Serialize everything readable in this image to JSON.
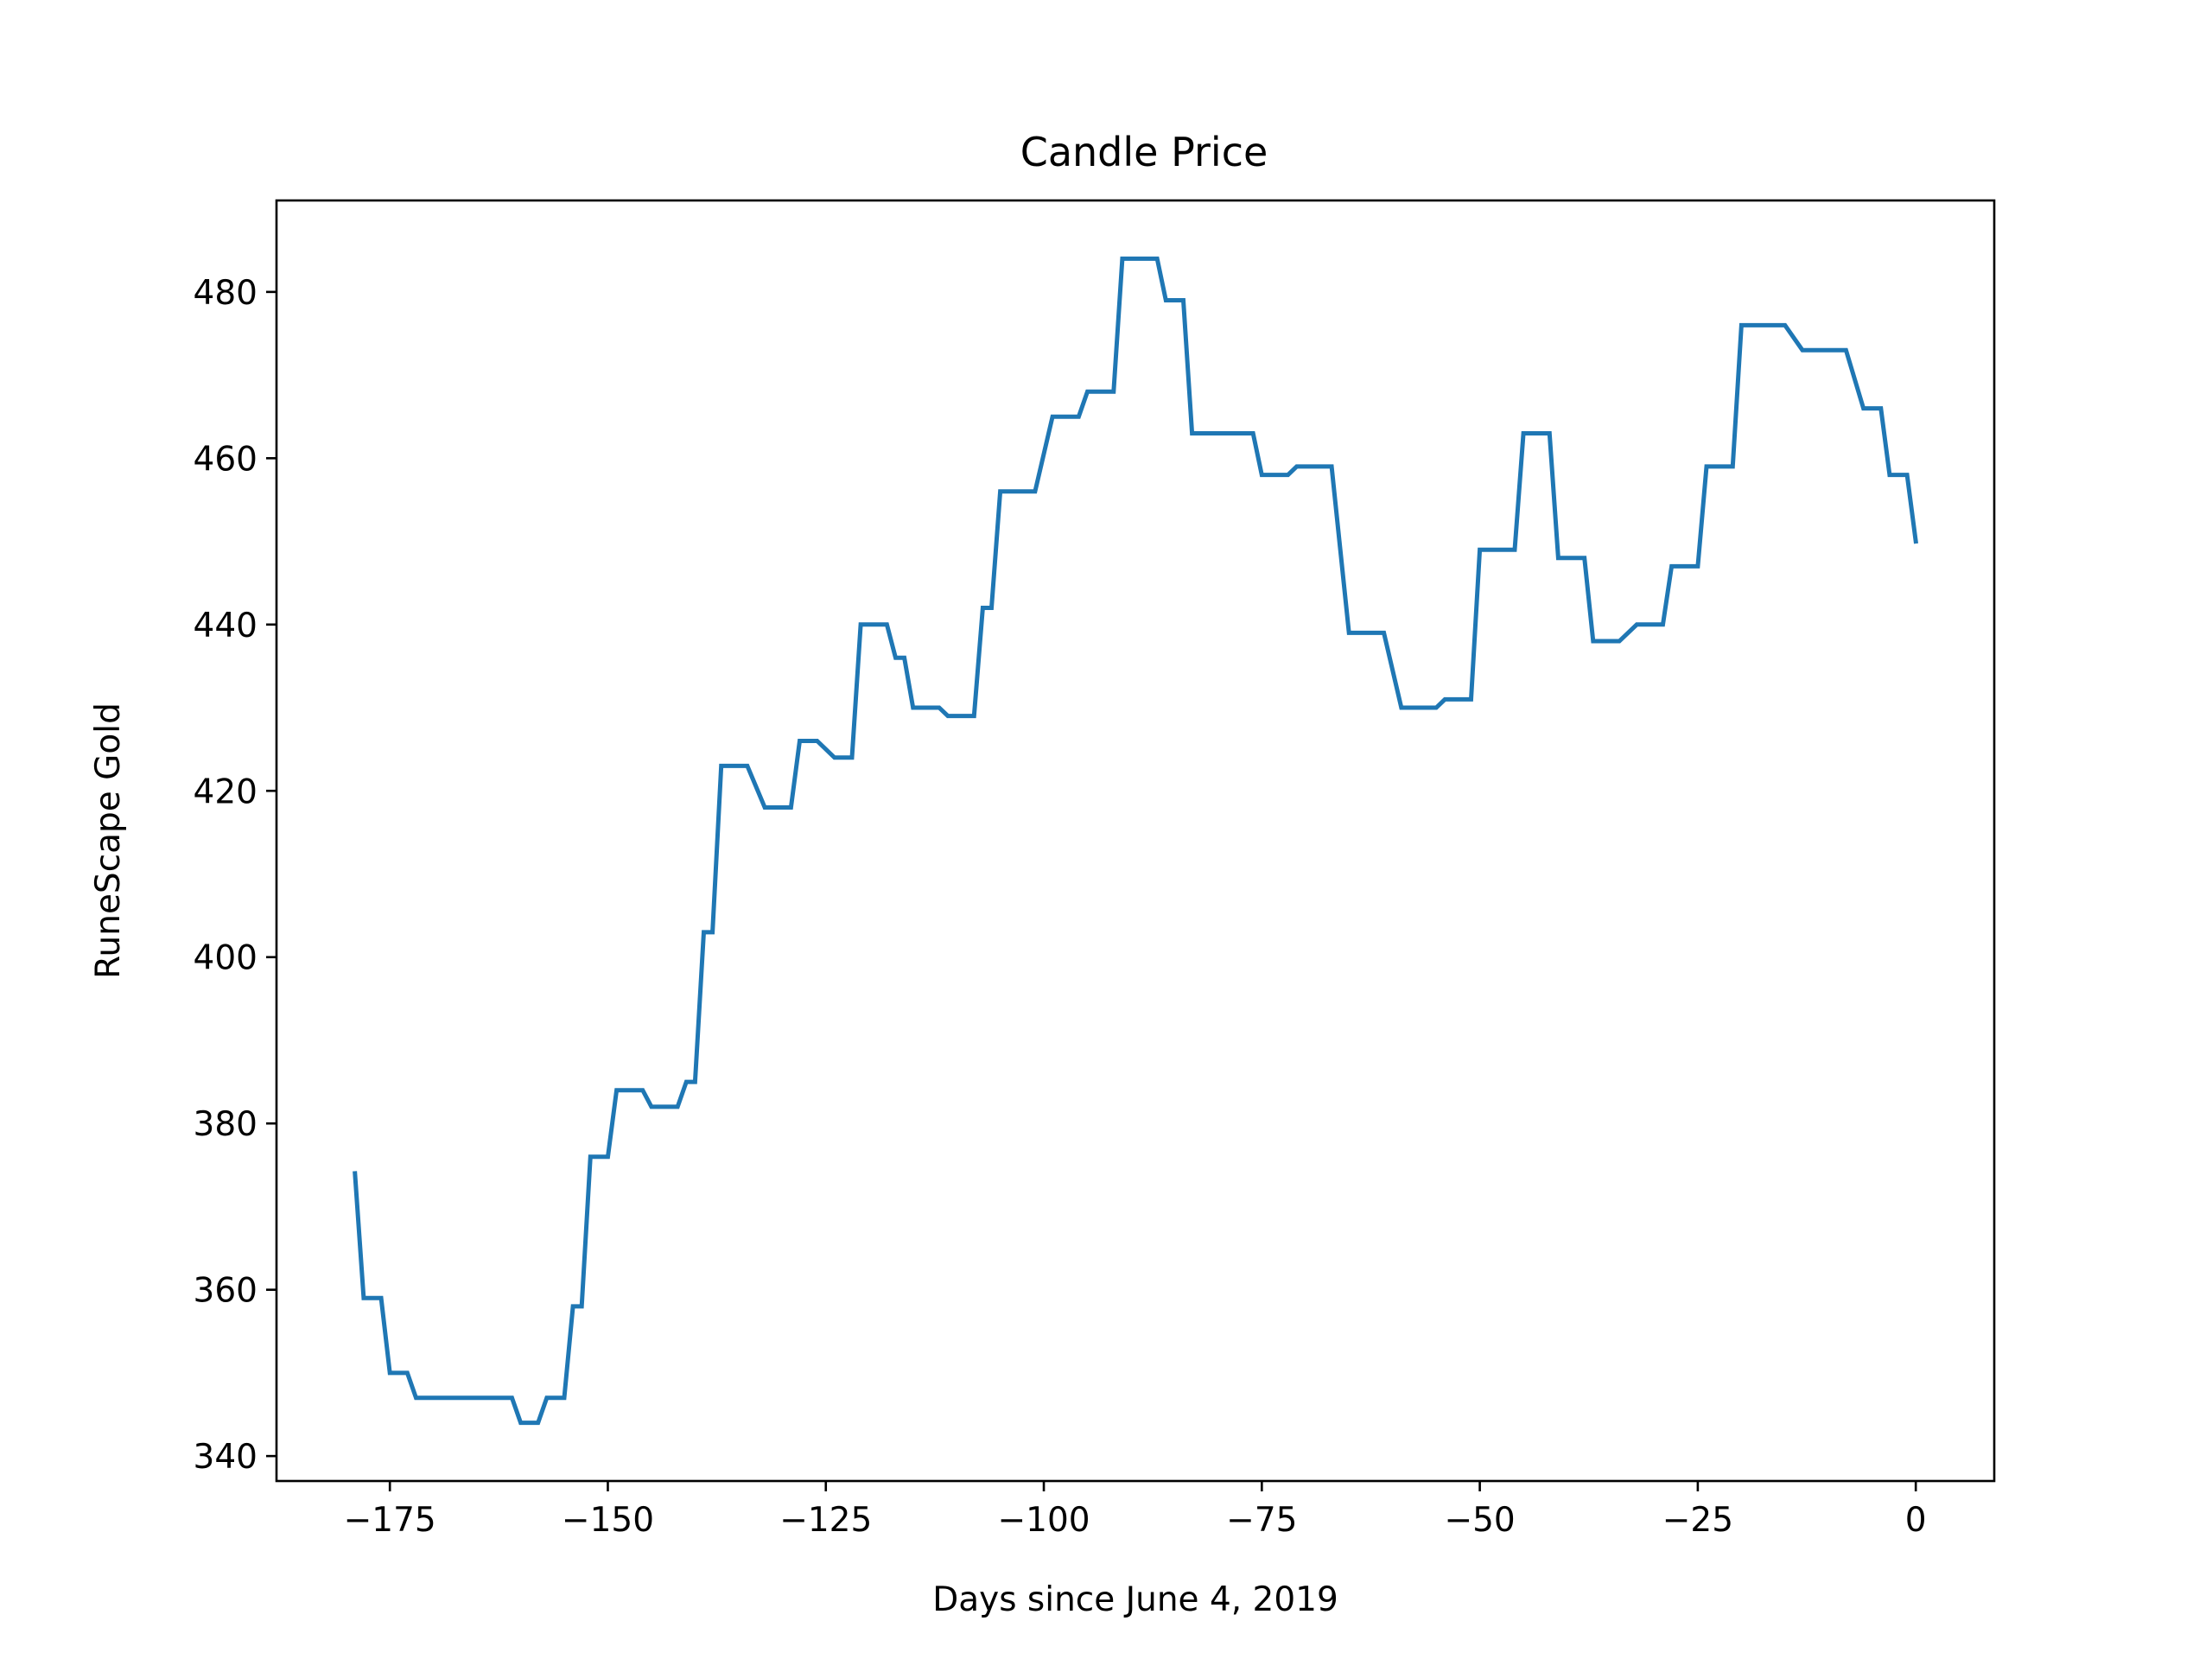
{
  "chart_data": {
    "type": "line",
    "title": "Candle Price",
    "xlabel": "Days since June 4, 2019",
    "ylabel": "RuneScape Gold",
    "xlim": [
      -188,
      9
    ],
    "ylim": [
      337,
      491
    ],
    "xticks": [
      -175,
      -150,
      -125,
      -100,
      -75,
      -50,
      -25,
      0
    ],
    "xtick_labels": [
      "−175",
      "−150",
      "−125",
      "−100",
      "−75",
      "−50",
      "−25",
      "0"
    ],
    "yticks": [
      340,
      360,
      380,
      400,
      420,
      440,
      460,
      480
    ],
    "ytick_labels": [
      "340",
      "360",
      "380",
      "400",
      "420",
      "440",
      "460",
      "480"
    ],
    "grid": false,
    "legend": "none",
    "series": [
      {
        "color": "#1f77b4",
        "x": [
          -179,
          -178,
          -176,
          -175,
          -173,
          -172,
          -171,
          -169,
          -167,
          -165,
          -163,
          -161,
          -160,
          -158,
          -157,
          -155,
          -154,
          -153,
          -152,
          -151,
          -150,
          -149,
          -148,
          -146,
          -145,
          -144,
          -142,
          -141,
          -140,
          -139,
          -138,
          -137,
          -136,
          -135,
          -134,
          -132,
          -131,
          -129,
          -128,
          -127,
          -126,
          -124,
          -122,
          -121,
          -119,
          -118,
          -117,
          -116,
          -115,
          -114,
          -112,
          -111,
          -110,
          -108,
          -107,
          -106,
          -105,
          -104,
          -102,
          -101,
          -99,
          -98,
          -96,
          -95,
          -93,
          -92,
          -91,
          -89,
          -88,
          -87,
          -86,
          -85,
          -84,
          -83,
          -82,
          -80,
          -79,
          -77,
          -76,
          -75,
          -73,
          -72,
          -71,
          -69,
          -68,
          -67,
          -65,
          -64,
          -63,
          -61,
          -59,
          -58,
          -56,
          -55,
          -54,
          -53,
          -52,
          -51,
          -50,
          -49,
          -48,
          -46,
          -45,
          -44,
          -43,
          -42,
          -41,
          -39,
          -38,
          -37,
          -35,
          -34,
          -32,
          -31,
          -29,
          -28,
          -26,
          -25,
          -24,
          -23,
          -21,
          -20,
          -19,
          -17,
          -15,
          -13,
          -11,
          -10,
          -8,
          -6,
          -5,
          -4,
          -3,
          -2,
          -1,
          0
        ],
        "y": [
          374,
          359,
          359,
          350,
          350,
          347,
          347,
          347,
          347,
          347,
          347,
          347,
          344,
          344,
          347,
          347,
          358,
          358,
          376,
          376,
          376,
          384,
          384,
          384,
          382,
          382,
          382,
          385,
          385,
          403,
          403,
          423,
          423,
          423,
          423,
          418,
          418,
          418,
          426,
          426,
          426,
          424,
          424,
          440,
          440,
          440,
          436,
          436,
          430,
          430,
          430,
          429,
          429,
          429,
          442,
          442,
          456,
          456,
          456,
          456,
          465,
          465,
          465,
          468,
          468,
          468,
          484,
          484,
          484,
          484,
          479,
          479,
          479,
          463,
          463,
          463,
          463,
          463,
          463,
          458,
          458,
          458,
          459,
          459,
          459,
          459,
          439,
          439,
          439,
          439,
          430,
          430,
          430,
          430,
          431,
          431,
          431,
          431,
          449,
          449,
          449,
          449,
          463,
          463,
          463,
          463,
          448,
          448,
          448,
          438,
          438,
          438,
          440,
          440,
          440,
          447,
          447,
          447,
          459,
          459,
          459,
          476,
          476,
          476,
          476,
          473,
          473,
          473,
          473,
          466,
          466,
          466,
          458,
          458,
          458,
          450
        ]
      }
    ]
  }
}
